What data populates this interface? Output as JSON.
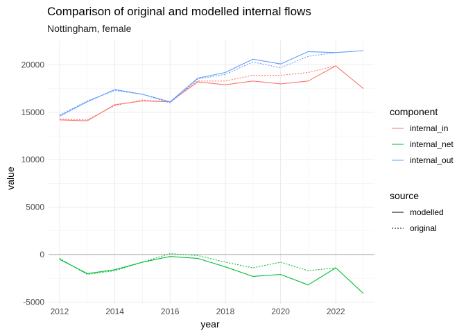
{
  "chart_data": {
    "type": "line",
    "title": "Comparison of original and modelled internal flows",
    "subtitle": "Nottingham, female",
    "xlabel": "year",
    "ylabel": "value",
    "xlim": [
      2011.6,
      2023.4
    ],
    "ylim": [
      -5200,
      22600
    ],
    "xticks": [
      2012,
      2014,
      2016,
      2018,
      2020,
      2022
    ],
    "yticks": [
      -5000,
      0,
      5000,
      10000,
      15000,
      20000
    ],
    "grid": true,
    "legend_placement": "right",
    "x": [
      2012,
      2013,
      2014,
      2015,
      2016,
      2017,
      2018,
      2019,
      2020,
      2021,
      2022,
      2023
    ],
    "legend": {
      "component_title": "component",
      "source_title": "source",
      "components": [
        {
          "label": "internal_in",
          "color": "#F8766D"
        },
        {
          "label": "internal_net",
          "color": "#00BA38"
        },
        {
          "label": "internal_out",
          "color": "#619CFF"
        }
      ],
      "sources": [
        {
          "label": "modelled",
          "dash": "solid"
        },
        {
          "label": "original",
          "dash": "dotted"
        }
      ]
    },
    "series": [
      {
        "component": "internal_in",
        "source": "modelled",
        "color": "#F8766D",
        "dash": "solid",
        "values": [
          14200,
          14100,
          15800,
          16200,
          16100,
          18200,
          17900,
          18300,
          18000,
          18300,
          19900,
          17500
        ]
      },
      {
        "component": "internal_in",
        "source": "original",
        "color": "#F8766D",
        "dash": "dotted",
        "values": [
          14300,
          14200,
          15700,
          16300,
          16100,
          18300,
          18300,
          18900,
          18900,
          19200,
          19900,
          null
        ]
      },
      {
        "component": "internal_out",
        "source": "modelled",
        "color": "#619CFF",
        "dash": "solid",
        "values": [
          14600,
          16100,
          17400,
          16900,
          16100,
          18600,
          19200,
          20600,
          20100,
          21400,
          21300,
          21500
        ]
      },
      {
        "component": "internal_out",
        "source": "original",
        "color": "#619CFF",
        "dash": "dotted",
        "values": [
          14700,
          16200,
          17300,
          16900,
          16000,
          18500,
          19000,
          20300,
          19700,
          20900,
          21300,
          null
        ]
      },
      {
        "component": "internal_net",
        "source": "modelled",
        "color": "#00BA38",
        "dash": "solid",
        "values": [
          -500,
          -2000,
          -1600,
          -800,
          -200,
          -400,
          -1300,
          -2300,
          -2100,
          -3200,
          -1400,
          -4100
        ]
      },
      {
        "component": "internal_net",
        "source": "original",
        "color": "#00BA38",
        "dash": "dotted",
        "values": [
          -400,
          -2100,
          -1700,
          -800,
          100,
          -100,
          -800,
          -1400,
          -800,
          -1700,
          -1400,
          null
        ]
      }
    ]
  }
}
